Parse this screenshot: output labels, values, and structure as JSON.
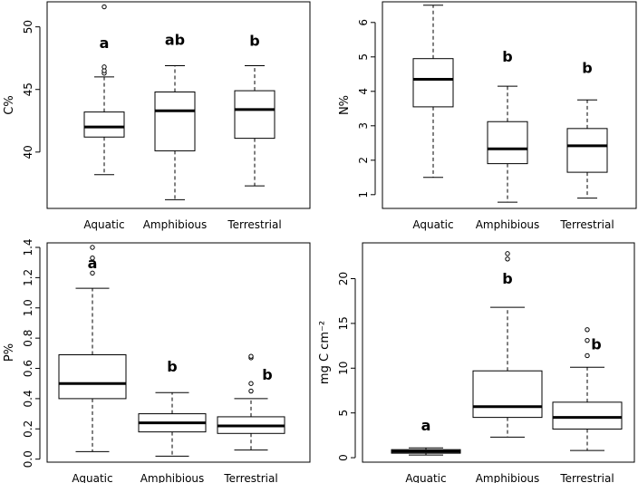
{
  "chart_data": [
    {
      "type": "boxplot",
      "ylabel": "C%",
      "ylim": [
        35.5,
        52
      ],
      "yticks": [
        40,
        45,
        50
      ],
      "categories": [
        "Aquatic",
        "Amphibious",
        "Terrestrial"
      ],
      "boxes": [
        {
          "category": "Aquatic",
          "min": 38.2,
          "q1": 41.2,
          "median": 42.0,
          "q3": 43.2,
          "max": 46.0,
          "outliers": [
            46.3,
            46.5,
            46.8,
            51.6
          ],
          "letter": "a"
        },
        {
          "category": "Amphibious",
          "min": 36.2,
          "q1": 40.1,
          "median": 43.3,
          "q3": 44.8,
          "max": 46.9,
          "outliers": [],
          "letter": "ab"
        },
        {
          "category": "Terrestrial",
          "min": 37.3,
          "q1": 41.1,
          "median": 43.4,
          "q3": 44.9,
          "max": 46.9,
          "outliers": [],
          "letter": "b"
        }
      ]
    },
    {
      "type": "boxplot",
      "ylabel": "N%",
      "ylim": [
        0.6,
        6.6
      ],
      "yticks": [
        1,
        2,
        3,
        4,
        5,
        6
      ],
      "categories": [
        "Aquatic",
        "Amphibious",
        "Terrestrial"
      ],
      "boxes": [
        {
          "category": "Aquatic",
          "min": 1.5,
          "q1": 3.55,
          "median": 4.35,
          "q3": 4.95,
          "max": 6.5,
          "outliers": [],
          "letter": "a"
        },
        {
          "category": "Amphibious",
          "min": 0.78,
          "q1": 1.9,
          "median": 2.33,
          "q3": 3.12,
          "max": 4.15,
          "outliers": [],
          "letter": "b"
        },
        {
          "category": "Terrestrial",
          "min": 0.9,
          "q1": 1.65,
          "median": 2.42,
          "q3": 2.92,
          "max": 3.75,
          "outliers": [],
          "letter": "b"
        }
      ]
    },
    {
      "type": "boxplot",
      "ylabel": "P%",
      "ylim": [
        -0.02,
        1.43
      ],
      "yticks": [
        0.0,
        0.2,
        0.4,
        0.6,
        0.8,
        1.0,
        1.2,
        1.4
      ],
      "ytick_labels": [
        "0.0",
        "0.2",
        "0.4",
        "0.6",
        "0.8",
        "1.0",
        "1.2",
        "1.4"
      ],
      "categories": [
        "Aquatic",
        "Amphibious",
        "Terrestrial"
      ],
      "boxes": [
        {
          "category": "Aquatic",
          "min": 0.05,
          "q1": 0.4,
          "median": 0.5,
          "q3": 0.69,
          "max": 1.13,
          "outliers": [
            1.23,
            1.33,
            1.4
          ],
          "letter": "a"
        },
        {
          "category": "Amphibious",
          "min": 0.02,
          "q1": 0.18,
          "median": 0.24,
          "q3": 0.3,
          "max": 0.44,
          "outliers": [],
          "letter": "b"
        },
        {
          "category": "Terrestrial",
          "min": 0.06,
          "q1": 0.17,
          "median": 0.22,
          "q3": 0.28,
          "max": 0.4,
          "outliers": [
            0.45,
            0.5,
            0.67,
            0.68
          ],
          "letter": "b"
        }
      ]
    },
    {
      "type": "boxplot",
      "ylabel": "mg C cm⁻²",
      "ylim": [
        -0.5,
        24
      ],
      "yticks": [
        0,
        5,
        10,
        15,
        20
      ],
      "categories": [
        "Aquatic",
        "Amphibious",
        "Terrestrial"
      ],
      "boxes": [
        {
          "category": "Aquatic",
          "min": 0.3,
          "q1": 0.5,
          "median": 0.7,
          "q3": 0.9,
          "max": 1.1,
          "outliers": [],
          "letter": "a"
        },
        {
          "category": "Amphibious",
          "min": 2.3,
          "q1": 4.5,
          "median": 5.7,
          "q3": 9.7,
          "max": 16.8,
          "outliers": [
            22.2,
            22.8
          ],
          "letter": "b"
        },
        {
          "category": "Terrestrial",
          "min": 0.8,
          "q1": 3.2,
          "median": 4.5,
          "q3": 6.2,
          "max": 10.1,
          "outliers": [
            11.4,
            13.1,
            14.3
          ],
          "letter": "b"
        }
      ]
    }
  ]
}
